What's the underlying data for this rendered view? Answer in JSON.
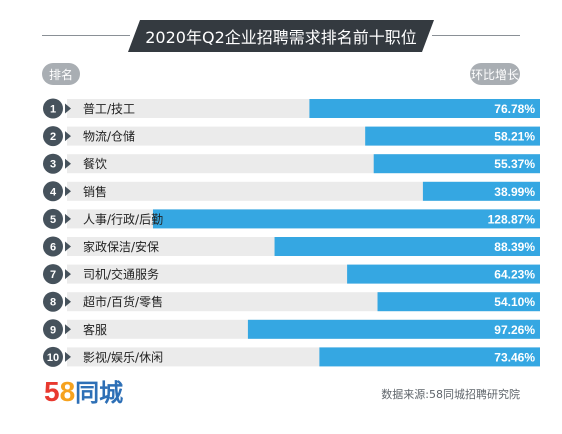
{
  "header": {
    "title": "2020年Q2企业招聘需求排名前十职位",
    "rank_label": "排名",
    "growth_label": "环比增长"
  },
  "footer": {
    "logo_digit1": "5",
    "logo_digit2": "8",
    "logo_text": "同城",
    "source": "数据来源:58同城招聘研究院"
  },
  "colors": {
    "bar": "#35a7e2",
    "track": "#ebebeb",
    "rank_circle": "#46525c",
    "title_bg": "#343a40"
  },
  "chart_data": {
    "type": "bar",
    "orientation": "horizontal",
    "title": "2020年Q2企业招聘需求排名前十职位",
    "ranks": [
      1,
      2,
      3,
      4,
      5,
      6,
      7,
      8,
      9,
      10
    ],
    "categories": [
      "普工/技工",
      "物流/仓储",
      "餐饮",
      "销售",
      "人事/行政/后勤",
      "家政保洁/安保",
      "司机/交通服务",
      "超市/百货/零售",
      "客服",
      "影视/娱乐/休闲"
    ],
    "values": [
      76.78,
      58.21,
      55.37,
      38.99,
      128.87,
      88.39,
      64.23,
      54.1,
      97.26,
      73.46
    ],
    "value_labels": [
      "76.78%",
      "58.21%",
      "55.37%",
      "38.99%",
      "128.87%",
      "88.39%",
      "64.23%",
      "54.10%",
      "97.26%",
      "73.46%"
    ],
    "unit": "%",
    "bar_alignment": "right"
  }
}
